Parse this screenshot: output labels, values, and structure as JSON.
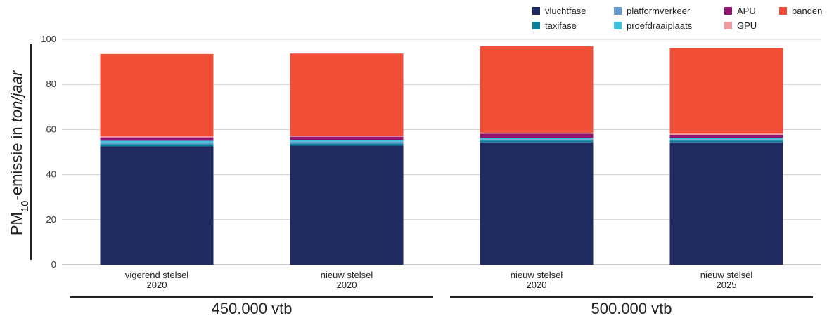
{
  "chart_data": {
    "type": "bar",
    "stacked": true,
    "title": "",
    "ylabel": {
      "prefix": "PM",
      "subscript": "10",
      "middle": "-emissie in ",
      "unit": "ton/jaar"
    },
    "ylim": [
      0,
      100
    ],
    "yticks": [
      0,
      20,
      40,
      60,
      80,
      100
    ],
    "grid": true,
    "legend_position": "top-right",
    "categories": [
      [
        "vigerend stelsel",
        "2020"
      ],
      [
        "nieuw stelsel",
        "2020"
      ],
      [
        "nieuw stelsel",
        "2020"
      ],
      [
        "nieuw stelsel",
        "2025"
      ]
    ],
    "groups": [
      {
        "label": "450.000 vtb",
        "categories": [
          0,
          1
        ]
      },
      {
        "label": "500.000 vtb",
        "categories": [
          2,
          3
        ]
      }
    ],
    "series": [
      {
        "name": "vluchtfase",
        "color": "#1f2a5e",
        "values": [
          52.5,
          52.8,
          54.3,
          54.3
        ]
      },
      {
        "name": "taxifase",
        "color": "#0b7f9a",
        "values": [
          1.0,
          1.0,
          0.8,
          0.8
        ]
      },
      {
        "name": "platformverkeer",
        "color": "#6699cc",
        "values": [
          0.8,
          0.8,
          0.6,
          0.6
        ]
      },
      {
        "name": "proefdraaiplaats",
        "color": "#3ec1dc",
        "values": [
          0.7,
          0.7,
          0.6,
          0.6
        ]
      },
      {
        "name": "APU",
        "color": "#8e1470",
        "values": [
          1.5,
          1.5,
          1.8,
          1.4
        ]
      },
      {
        "name": "GPU",
        "color": "#f09aa0",
        "values": [
          0.5,
          0.5,
          0.5,
          0.5
        ]
      },
      {
        "name": "banden",
        "color": "#f04e37",
        "values": [
          36.5,
          36.4,
          38.3,
          37.9
        ]
      }
    ]
  }
}
